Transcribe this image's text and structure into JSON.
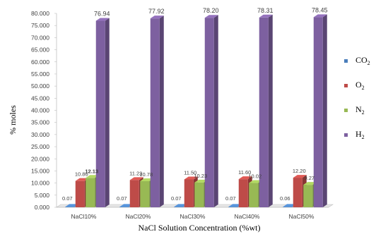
{
  "chart_data": {
    "type": "bar",
    "title": "",
    "xlabel": "NaCl Solution  Concentration  (%wt)",
    "ylabel": "% moles",
    "ylim": [
      0,
      80
    ],
    "y_tick_step": 5,
    "y_tick_labels": [
      "0.000",
      "5.000",
      "10.000",
      "15.000",
      "20.000",
      "25.000",
      "30.000",
      "35.000",
      "40.000",
      "45.000",
      "50.000",
      "55.000",
      "60.000",
      "65.000",
      "70.000",
      "75.000",
      "80.000"
    ],
    "categories": [
      "NaCl10%",
      "NaCl20%",
      "NaCl30%",
      "NaCl40%",
      "NaCl50%"
    ],
    "series": [
      {
        "name": "CO2",
        "name_base": "CO",
        "name_sub": "2",
        "color": "#4a7ebb",
        "values": [
          0.07,
          0.07,
          0.07,
          0.07,
          0.06
        ],
        "labels": [
          "0.07",
          "0.07",
          "0.07",
          "0.07",
          "0.06"
        ]
      },
      {
        "name": "O2",
        "name_base": "O",
        "name_sub": "2",
        "color": "#be4b48",
        "values": [
          10.86,
          11.23,
          11.5,
          11.6,
          12.2
        ],
        "labels": [
          "10.86",
          "11.23",
          "11.50",
          "11.60",
          "12.20"
        ]
      },
      {
        "name": "N2",
        "name_base": "N",
        "name_sub": "2",
        "color": "#98b954",
        "values": [
          12.13,
          10.78,
          10.23,
          10.02,
          9.27
        ],
        "labels": [
          "12.13",
          "10.78",
          "10.23",
          "10.02",
          "9.27"
        ]
      },
      {
        "name": "H2",
        "name_base": "H",
        "name_sub": "2",
        "color": "#7d60a0",
        "values": [
          76.94,
          77.92,
          78.2,
          78.31,
          78.45
        ],
        "labels": [
          "76.94",
          "77.92",
          "78.20",
          "78.31",
          "78.45"
        ]
      }
    ],
    "grid": false,
    "legend_position": "right",
    "style": "3d-column"
  }
}
